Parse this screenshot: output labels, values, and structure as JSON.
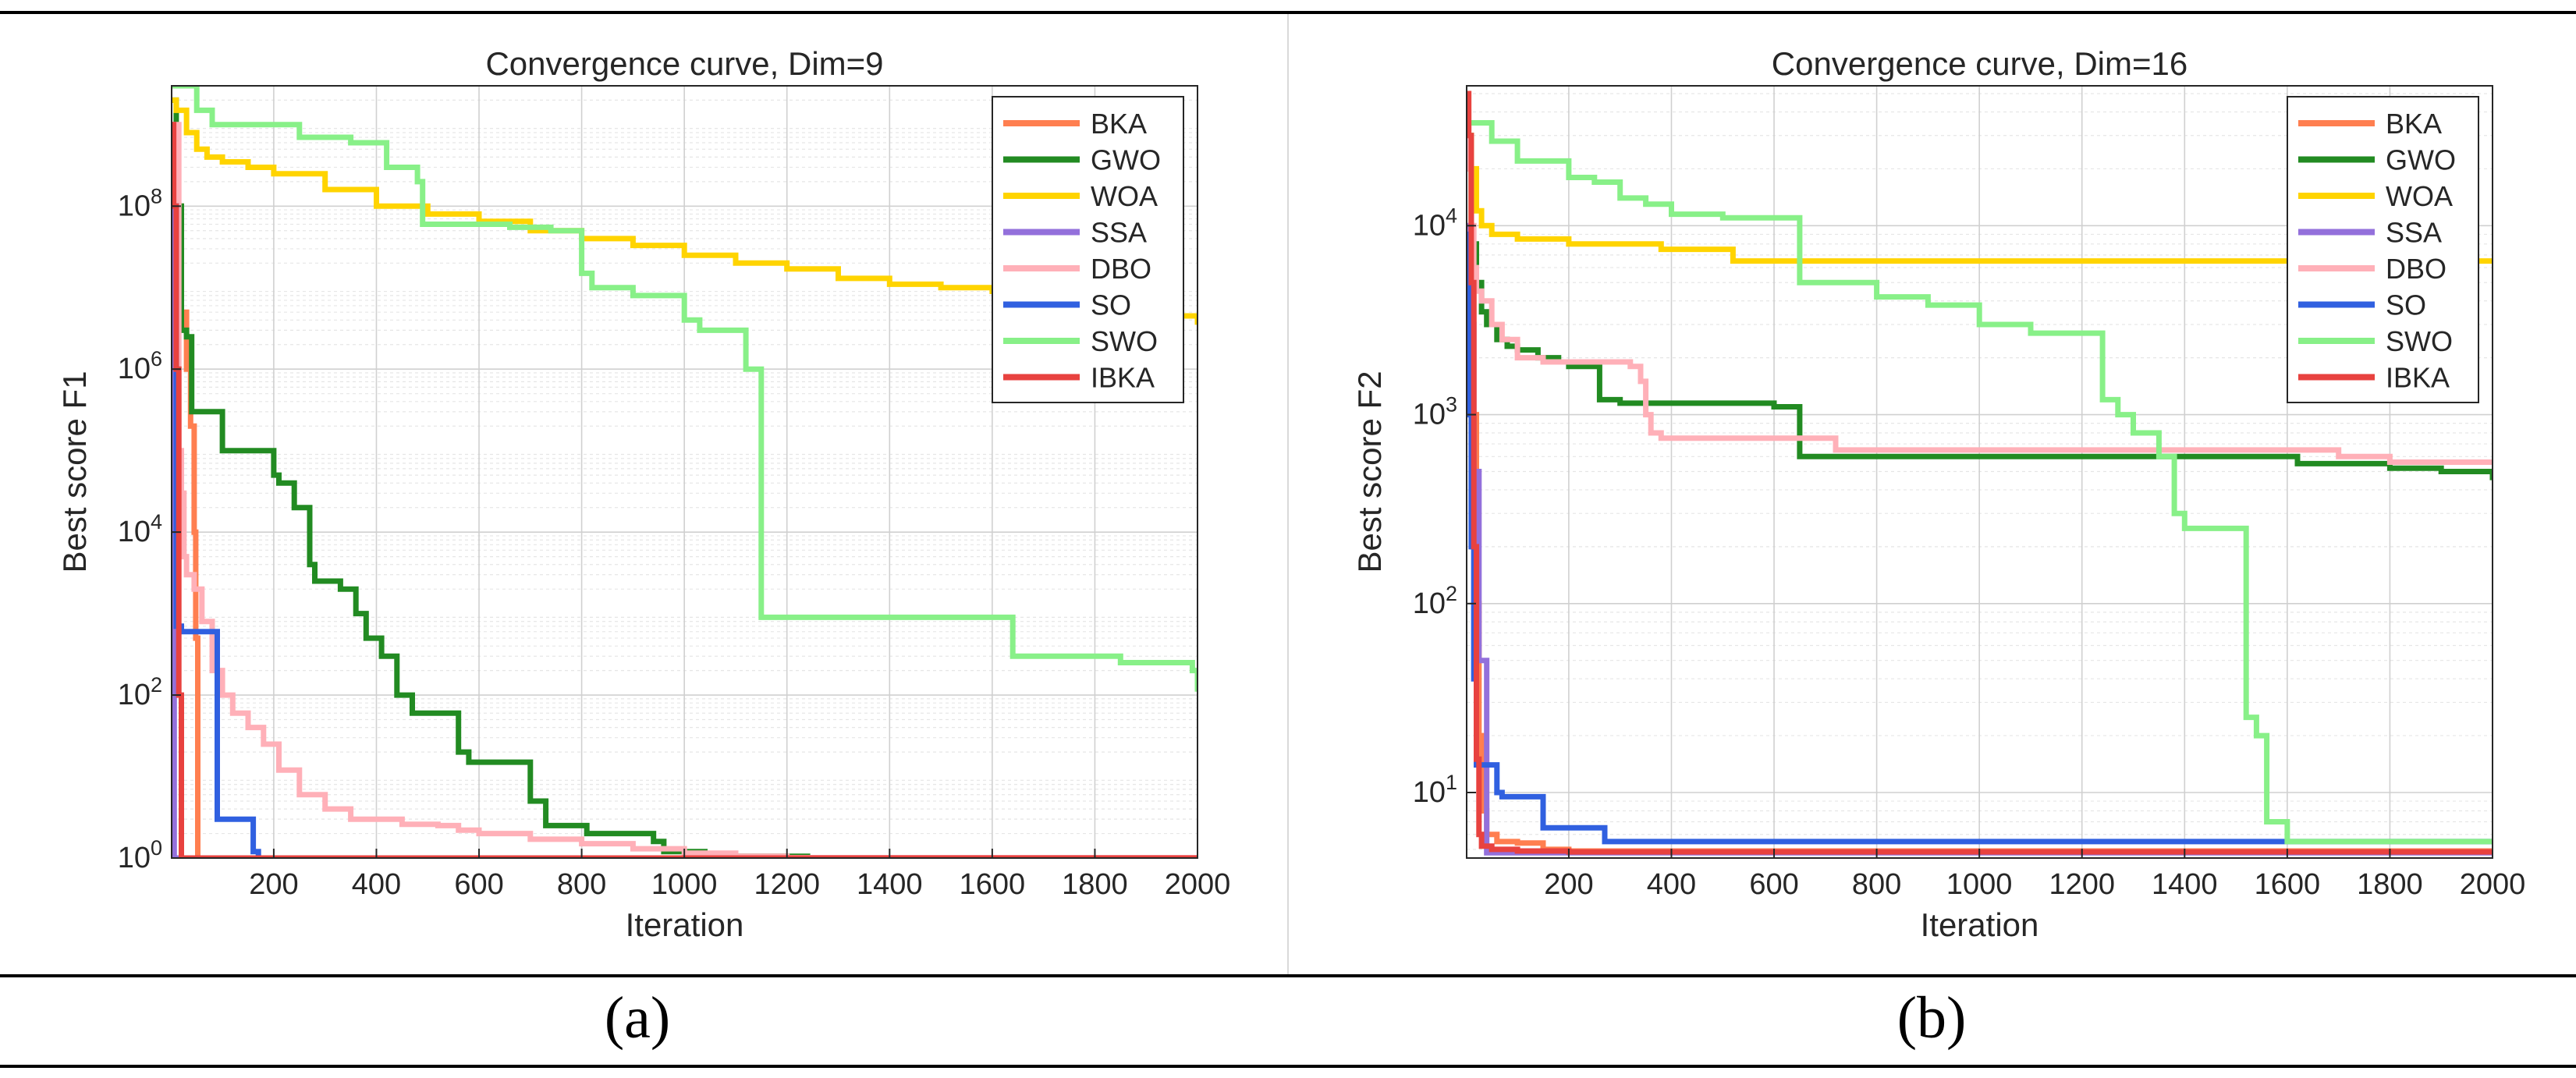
{
  "captions": {
    "a": "(a)",
    "b": "(b)"
  },
  "chart_data": [
    {
      "type": "line",
      "title": "Convergence curve, Dim=9",
      "xlabel": "Iteration",
      "ylabel": "Best score F1",
      "yscale": "log",
      "xlim": [
        1,
        2000
      ],
      "ylim": [
        1,
        3000000000.0
      ],
      "xticks": [
        200,
        400,
        600,
        800,
        1000,
        1200,
        1400,
        1600,
        1800,
        2000
      ],
      "yticks": [
        {
          "value": 1,
          "base": "10",
          "exp": "0"
        },
        {
          "value": 100,
          "base": "10",
          "exp": "2"
        },
        {
          "value": 10000,
          "base": "10",
          "exp": "4"
        },
        {
          "value": 1000000,
          "base": "10",
          "exp": "6"
        },
        {
          "value": 100000000,
          "base": "10",
          "exp": "8"
        }
      ],
      "grid": true,
      "legend_position": "top-right",
      "series": [
        {
          "name": "BKA",
          "color": "#ff7f50",
          "x": [
            1,
            10,
            20,
            30,
            38,
            45,
            48,
            52,
            60,
            2000
          ],
          "y": [
            1000000000.0,
            100000000.0,
            5000000.0,
            1000000.0,
            200000.0,
            10000.0,
            500,
            1,
            1,
            1
          ]
        },
        {
          "name": "GWO",
          "color": "#228b22",
          "x": [
            1,
            10,
            20,
            30,
            40,
            60,
            80,
            100,
            160,
            200,
            210,
            240,
            270,
            280,
            300,
            330,
            360,
            380,
            410,
            440,
            470,
            520,
            560,
            580,
            660,
            700,
            730,
            800,
            810,
            880,
            940,
            960,
            1000,
            1040,
            1100,
            1240
          ],
          "y": [
            2000000000.0,
            100000000.0,
            3000000.0,
            2500000.0,
            300000.0,
            300000.0,
            300000.0,
            100000.0,
            100000.0,
            50000.0,
            40000.0,
            20000.0,
            4000.0,
            2500.0,
            2500.0,
            2000.0,
            1000.0,
            500,
            300,
            100,
            60,
            60,
            20,
            15,
            15,
            5,
            2.5,
            2.5,
            2,
            2,
            1.6,
            1.2,
            1.2,
            1.1,
            1.05,
            1.0
          ]
        },
        {
          "name": "WOA",
          "color": "#ffd400",
          "x": [
            1,
            10,
            30,
            50,
            70,
            100,
            150,
            200,
            300,
            400,
            500,
            600,
            700,
            800,
            900,
            1000,
            1100,
            1200,
            1300,
            1400,
            1500,
            1600,
            1700,
            1800,
            1900,
            2000
          ],
          "y": [
            2000000000.0,
            1500000000.0,
            800000000.0,
            500000000.0,
            400000000.0,
            350000000.0,
            300000000.0,
            250000000.0,
            160000000.0,
            100000000.0,
            80000000.0,
            65000000.0,
            50000000.0,
            40000000.0,
            33000000.0,
            25000000.0,
            20000000.0,
            17000000.0,
            13000000.0,
            11000000.0,
            10000000.0,
            9000000.0,
            7000000.0,
            5000000.0,
            4500000.0,
            3500000.0
          ]
        },
        {
          "name": "SSA",
          "color": "#9370db",
          "x": [
            1,
            3,
            6,
            2000
          ],
          "y": [
            100000000.0,
            1000.0,
            1,
            1
          ]
        },
        {
          "name": "DBO",
          "color": "#ffb0b8",
          "x": [
            1,
            15,
            20,
            25,
            30,
            45,
            60,
            80,
            100,
            120,
            150,
            180,
            210,
            250,
            300,
            350,
            450,
            520,
            560,
            600,
            700,
            800,
            900,
            1000,
            1100,
            1200,
            2000
          ],
          "y": [
            1000000000.0,
            100000.0,
            30000.0,
            5000.0,
            3000.0,
            2000.0,
            800,
            200,
            100,
            60,
            40,
            25,
            12,
            6,
            4,
            3,
            2.6,
            2.5,
            2.2,
            2,
            1.7,
            1.5,
            1.3,
            1.15,
            1.05,
            1.01,
            1.0
          ]
        },
        {
          "name": "SO",
          "color": "#3060e0",
          "x": [
            1,
            10,
            20,
            40,
            60,
            80,
            90,
            100,
            120,
            150,
            160,
            170,
            2000
          ],
          "y": [
            100000000.0,
            700,
            600,
            600,
            600,
            600,
            3,
            3,
            3,
            3,
            1.2,
            1.0,
            1.0
          ]
        },
        {
          "name": "SWO",
          "color": "#88f088",
          "x": [
            1,
            50,
            80,
            200,
            250,
            310,
            350,
            420,
            480,
            490,
            560,
            660,
            740,
            800,
            820,
            900,
            1000,
            1030,
            1080,
            1120,
            1150,
            1620,
            1640,
            1700,
            1850,
            1950,
            1990,
            2000
          ],
          "y": [
            3000000000.0,
            1500000000.0,
            1000000000.0,
            1000000000.0,
            700000000.0,
            700000000.0,
            600000000.0,
            300000000.0,
            200000000.0,
            60000000.0,
            60000000.0,
            55000000.0,
            50000000.0,
            15000000.0,
            10000000.0,
            8000000.0,
            4000000.0,
            3000000.0,
            3000000.0,
            1000000.0,
            900,
            900,
            300,
            300,
            250,
            250,
            200,
            110
          ]
        },
        {
          "name": "IBKA",
          "color": "#e8423f",
          "x": [
            1,
            5,
            10,
            15,
            20,
            2000
          ],
          "y": [
            1000000000.0,
            100000000.0,
            1000000.0,
            100,
            1,
            1
          ]
        }
      ]
    },
    {
      "type": "line",
      "title": "Convergence curve, Dim=16",
      "xlabel": "Iteration",
      "ylabel": "Best score F2",
      "yscale": "log",
      "xlim": [
        1,
        2000
      ],
      "ylim": [
        4.5,
        55000
      ],
      "xticks": [
        200,
        400,
        600,
        800,
        1000,
        1200,
        1400,
        1600,
        1800,
        2000
      ],
      "yticks": [
        {
          "value": 10,
          "base": "10",
          "exp": "1"
        },
        {
          "value": 100,
          "base": "10",
          "exp": "2"
        },
        {
          "value": 1000,
          "base": "10",
          "exp": "3"
        },
        {
          "value": 10000,
          "base": "10",
          "exp": "4"
        }
      ],
      "grid": true,
      "legend_position": "top-right",
      "series": [
        {
          "name": "BKA",
          "color": "#ff7f50",
          "x": [
            1,
            5,
            10,
            15,
            20,
            25,
            30,
            40,
            60,
            100,
            140,
            150,
            200,
            2000
          ],
          "y": [
            50000,
            20000,
            5000,
            1000,
            100,
            20,
            8,
            6,
            5.5,
            5.4,
            5.4,
            5,
            4.9,
            4.8
          ]
        },
        {
          "name": "GWO",
          "color": "#228b22",
          "x": [
            1,
            10,
            20,
            30,
            40,
            60,
            80,
            100,
            140,
            180,
            200,
            230,
            260,
            300,
            600,
            640,
            650,
            1000,
            1600,
            1620,
            1800,
            1900,
            2000
          ],
          "y": [
            30000,
            8000,
            5000,
            3500,
            3000,
            2500,
            2300,
            2200,
            2000,
            1900,
            1800,
            1800,
            1200,
            1150,
            1100,
            1100,
            600,
            600,
            600,
            550,
            520,
            500,
            450
          ]
        },
        {
          "name": "WOA",
          "color": "#ffd400",
          "x": [
            1,
            10,
            20,
            30,
            50,
            100,
            200,
            300,
            380,
            500,
            520,
            600,
            800,
            1000,
            2000
          ],
          "y": [
            30000,
            20000,
            12000,
            10000,
            9000,
            8500,
            8000,
            8000,
            7500,
            7500,
            6500,
            6500,
            6500,
            6500,
            6500
          ]
        },
        {
          "name": "SSA",
          "color": "#9370db",
          "x": [
            1,
            8,
            15,
            25,
            40,
            2000
          ],
          "y": [
            10000,
            3000,
            500,
            50,
            4.8,
            4.8
          ]
        },
        {
          "name": "DBO",
          "color": "#ffb0b8",
          "x": [
            1,
            5,
            10,
            15,
            20,
            30,
            50,
            70,
            100,
            150,
            200,
            250,
            320,
            340,
            350,
            360,
            380,
            700,
            720,
            1000,
            1600,
            1700,
            1800,
            2000
          ],
          "y": [
            40000,
            20000,
            10000,
            6000,
            4500,
            4000,
            3000,
            2500,
            2000,
            1900,
            1900,
            1900,
            1800,
            1500,
            1000,
            800,
            750,
            750,
            650,
            650,
            650,
            600,
            560,
            550
          ]
        },
        {
          "name": "SO",
          "color": "#3060e0",
          "x": [
            1,
            5,
            10,
            15,
            20,
            25,
            30,
            60,
            70,
            140,
            150,
            250,
            270,
            2000
          ],
          "y": [
            9000,
            1000,
            200,
            40,
            14,
            14,
            14,
            10,
            9.5,
            9.5,
            6.5,
            6.5,
            5.5,
            5.5
          ]
        },
        {
          "name": "SWO",
          "color": "#88f088",
          "x": [
            1,
            50,
            100,
            200,
            250,
            300,
            350,
            400,
            500,
            600,
            650,
            700,
            800,
            900,
            1000,
            1100,
            1200,
            1240,
            1270,
            1300,
            1350,
            1380,
            1400,
            1500,
            1520,
            1540,
            1560,
            1600,
            1650,
            2000
          ],
          "y": [
            35000,
            28000,
            22000,
            18000,
            17000,
            14000,
            13000,
            11500,
            11000,
            11000,
            5000,
            5000,
            4200,
            3800,
            3000,
            2700,
            2700,
            1200,
            1000,
            800,
            600,
            300,
            250,
            250,
            25,
            20,
            7,
            5.5,
            5.5,
            5.5
          ]
        },
        {
          "name": "IBKA",
          "color": "#e8423f",
          "x": [
            1,
            5,
            10,
            15,
            20,
            25,
            30,
            50,
            100,
            200,
            2000
          ],
          "y": [
            50000,
            30000,
            5000,
            200,
            15,
            6,
            5.2,
            5.0,
            4.9,
            4.85,
            4.8
          ]
        }
      ]
    }
  ]
}
